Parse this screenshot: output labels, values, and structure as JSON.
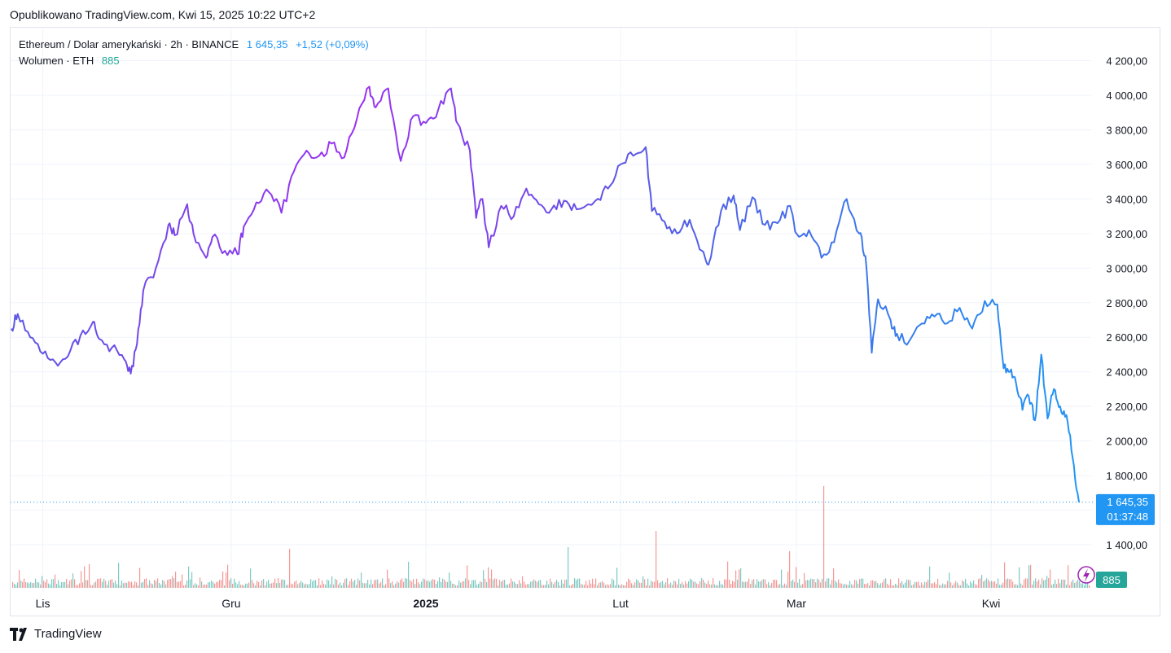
{
  "header": {
    "published": "Opublikowano TradingView.com, Kwi 15, 2025 10:22 UTC+2"
  },
  "legend": {
    "symbol": "Ethereum / Dolar amerykański · 2h · BINANCE",
    "price": "1 645,35",
    "change": "+1,52 (+0,09%)",
    "volume_label": "Wolumen · ETH",
    "volume_value": "885"
  },
  "badges": {
    "price": "1 645,35",
    "countdown": "01:37:48",
    "volume": "885"
  },
  "footer": {
    "brand": "TradingView"
  },
  "colors": {
    "line_start": "#5b57e6",
    "line_peak": "#9c30f2",
    "line_end": "#2196f3",
    "vol_up": "#26a69a",
    "vol_down": "#ef5350",
    "grid": "#f0f3fa"
  },
  "chart_data": {
    "type": "line",
    "title": "Ethereum / Dolar amerykański · 2h · BINANCE",
    "y_axis": {
      "ylim": [
        1300,
        4250
      ],
      "ticks": [
        1400,
        1600,
        1800,
        2000,
        2200,
        2400,
        2600,
        2800,
        3000,
        3200,
        3400,
        3600,
        3800,
        4000,
        4200
      ],
      "tick_labels": [
        "1 400,00",
        "",
        "1 800,00",
        "2 000,00",
        "2 200,00",
        "2 400,00",
        "2 600,00",
        "2 800,00",
        "3 000,00",
        "3 200,00",
        "3 400,00",
        "3 600,00",
        "3 800,00",
        "4 000,00",
        "4 200,00"
      ]
    },
    "x_axis": {
      "range": [
        "2024-10-27",
        "2025-04-15"
      ],
      "ticks": [
        {
          "date": "2024-11-01",
          "label": "Lis"
        },
        {
          "date": "2024-12-01",
          "label": "Gru"
        },
        {
          "date": "2025-01-01",
          "label": "2025",
          "bold": true
        },
        {
          "date": "2025-02-01",
          "label": "Lut"
        },
        {
          "date": "2025-03-01",
          "label": "Mar"
        },
        {
          "date": "2025-04-01",
          "label": "Kwi"
        }
      ]
    },
    "grid": true,
    "last_price": 1645.35,
    "series": [
      {
        "values_note": "",
        "points": [
          [
            "2024-10-27",
            2650
          ],
          [
            "2024-10-28",
            2735
          ],
          [
            "2024-10-30",
            2600
          ],
          [
            "2024-11-01",
            2505
          ],
          [
            "2024-11-03",
            2455
          ],
          [
            "2024-11-05",
            2490
          ],
          [
            "2024-11-07",
            2610
          ],
          [
            "2024-11-09",
            2690
          ],
          [
            "2024-11-10",
            2590
          ],
          [
            "2024-11-12",
            2540
          ],
          [
            "2024-11-14",
            2470
          ],
          [
            "2024-11-15",
            2390
          ],
          [
            "2024-11-16",
            2560
          ],
          [
            "2024-11-17",
            2870
          ],
          [
            "2024-11-19",
            3000
          ],
          [
            "2024-11-21",
            3250
          ],
          [
            "2024-11-22",
            3190
          ],
          [
            "2024-11-24",
            3370
          ],
          [
            "2024-11-25",
            3200
          ],
          [
            "2024-11-27",
            3060
          ],
          [
            "2024-11-28",
            3180
          ],
          [
            "2024-11-30",
            3100
          ],
          [
            "2024-12-02",
            3080
          ],
          [
            "2024-12-03",
            3240
          ],
          [
            "2024-12-05",
            3380
          ],
          [
            "2024-12-07",
            3440
          ],
          [
            "2024-12-09",
            3320
          ],
          [
            "2024-12-11",
            3560
          ],
          [
            "2024-12-13",
            3680
          ],
          [
            "2024-12-15",
            3650
          ],
          [
            "2024-12-17",
            3720
          ],
          [
            "2024-12-19",
            3640
          ],
          [
            "2024-12-21",
            3860
          ],
          [
            "2024-12-23",
            4050
          ],
          [
            "2024-12-24",
            3930
          ],
          [
            "2024-12-26",
            4040
          ],
          [
            "2024-12-28",
            3620
          ],
          [
            "2024-12-30",
            3880
          ],
          [
            "2025-01-01",
            3840
          ],
          [
            "2025-01-03",
            3920
          ],
          [
            "2025-01-05",
            4040
          ],
          [
            "2025-01-06",
            3840
          ],
          [
            "2025-01-08",
            3680
          ],
          [
            "2025-01-09",
            3290
          ],
          [
            "2025-01-10",
            3400
          ],
          [
            "2025-01-11",
            3120
          ],
          [
            "2025-01-13",
            3360
          ],
          [
            "2025-01-15",
            3300
          ],
          [
            "2025-01-17",
            3460
          ],
          [
            "2025-01-19",
            3370
          ],
          [
            "2025-01-21",
            3340
          ],
          [
            "2025-01-23",
            3390
          ],
          [
            "2025-01-25",
            3340
          ],
          [
            "2025-01-28",
            3390
          ],
          [
            "2025-01-30",
            3460
          ],
          [
            "2025-02-01",
            3600
          ],
          [
            "2025-02-03",
            3650
          ],
          [
            "2025-02-05",
            3700
          ],
          [
            "2025-02-06",
            3330
          ],
          [
            "2025-02-08",
            3270
          ],
          [
            "2025-02-10",
            3200
          ],
          [
            "2025-02-12",
            3280
          ],
          [
            "2025-02-14",
            3100
          ],
          [
            "2025-02-15",
            3020
          ],
          [
            "2025-02-17",
            3330
          ],
          [
            "2025-02-19",
            3420
          ],
          [
            "2025-02-20",
            3220
          ],
          [
            "2025-02-22",
            3410
          ],
          [
            "2025-02-24",
            3250
          ],
          [
            "2025-02-26",
            3260
          ],
          [
            "2025-02-28",
            3360
          ],
          [
            "2025-03-01",
            3200
          ],
          [
            "2025-03-03",
            3220
          ],
          [
            "2025-03-05",
            3060
          ],
          [
            "2025-03-07",
            3150
          ],
          [
            "2025-03-09",
            3400
          ],
          [
            "2025-03-11",
            3200
          ],
          [
            "2025-03-12",
            3070
          ],
          [
            "2025-03-13",
            2510
          ],
          [
            "2025-03-14",
            2820
          ],
          [
            "2025-03-16",
            2700
          ],
          [
            "2025-03-17",
            2620
          ],
          [
            "2025-03-19",
            2580
          ],
          [
            "2025-03-21",
            2680
          ],
          [
            "2025-03-23",
            2720
          ],
          [
            "2025-03-25",
            2680
          ],
          [
            "2025-03-27",
            2770
          ],
          [
            "2025-03-29",
            2650
          ],
          [
            "2025-03-31",
            2810
          ],
          [
            "2025-04-02",
            2790
          ],
          [
            "2025-04-03",
            2420
          ],
          [
            "2025-04-04",
            2400
          ],
          [
            "2025-04-05",
            2330
          ],
          [
            "2025-04-06",
            2180
          ],
          [
            "2025-04-07",
            2260
          ],
          [
            "2025-04-08",
            2120
          ],
          [
            "2025-04-09",
            2500
          ],
          [
            "2025-04-10",
            2130
          ],
          [
            "2025-04-11",
            2300
          ],
          [
            "2025-04-12",
            2200
          ],
          [
            "2025-04-13",
            2150
          ],
          [
            "2025-04-14",
            1900
          ],
          [
            "2025-04-15",
            1645.35
          ]
        ]
      }
    ]
  }
}
